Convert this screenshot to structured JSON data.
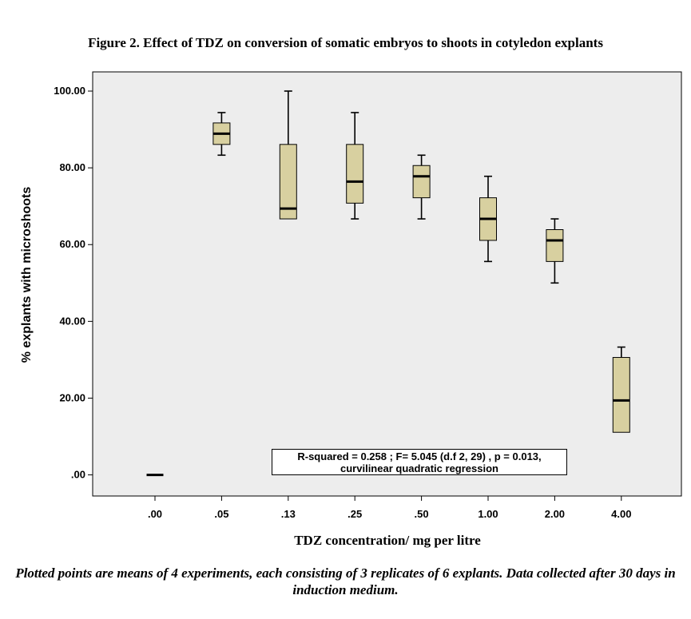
{
  "title": "Figure 2. Effect of TDZ on conversion of somatic embryos to shoots in cotyledon explants",
  "caption": "Plotted points are means of 4 experiments, each consisting of 3 replicates of 6 explants. Data collected after 30 days in induction medium.",
  "annotation": {
    "line1": "R-squared = 0.258  ; F= 5.045 (d.f 2, 29) , p = 0.013,",
    "line2": "curvilinear quadratic regression"
  },
  "chart_data": {
    "type": "box",
    "title": "Figure 2. Effect of TDZ on conversion of somatic embryos to shoots in cotyledon explants",
    "xlabel": "TDZ concentration/ mg per litre",
    "ylabel": "% explants with microshoots",
    "categories": [
      ".00",
      ".05",
      ".13",
      ".25",
      ".50",
      "1.00",
      "2.00",
      "4.00"
    ],
    "yticks": [
      ".00",
      "20.00",
      "40.00",
      "60.00",
      "80.00",
      "100.00"
    ],
    "ylim": [
      -5.5,
      105
    ],
    "grid": false,
    "plot_background": "#ededed",
    "box_color": "#d8d0a0",
    "boxes": [
      {
        "category": ".00",
        "min": 0.0,
        "q1": 0.0,
        "median": 0.0,
        "q3": 0.0,
        "max": 0.0
      },
      {
        "category": ".05",
        "min": 83.3,
        "q1": 86.1,
        "median": 88.9,
        "q3": 91.7,
        "max": 94.4
      },
      {
        "category": ".13",
        "min": 66.7,
        "q1": 66.7,
        "median": 69.4,
        "q3": 86.1,
        "max": 100.0
      },
      {
        "category": ".25",
        "min": 66.7,
        "q1": 70.8,
        "median": 76.4,
        "q3": 86.1,
        "max": 94.4
      },
      {
        "category": ".50",
        "min": 66.7,
        "q1": 72.2,
        "median": 77.8,
        "q3": 80.6,
        "max": 83.3
      },
      {
        "category": "1.00",
        "min": 55.6,
        "q1": 61.1,
        "median": 66.7,
        "q3": 72.2,
        "max": 77.8
      },
      {
        "category": "2.00",
        "min": 50.0,
        "q1": 55.6,
        "median": 61.1,
        "q3": 63.9,
        "max": 66.7
      },
      {
        "category": "4.00",
        "min": 11.1,
        "q1": 11.1,
        "median": 19.4,
        "q3": 30.6,
        "max": 33.3
      }
    ]
  }
}
